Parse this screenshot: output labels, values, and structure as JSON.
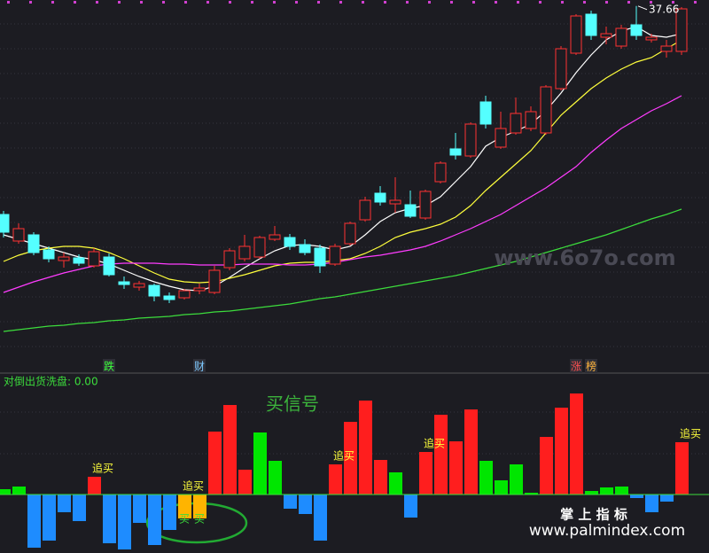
{
  "chart_data": [
    {
      "type": "candlestick",
      "up_color": "#ff3232",
      "down_color": "#54ffff",
      "ylim": [
        18,
        38
      ],
      "open": [
        25.9,
        24.4,
        24.75,
        23.9,
        23.3,
        23.45,
        23.0,
        23.5,
        22.1,
        21.8,
        21.9,
        21.3,
        21.2,
        21.6,
        21.5,
        22.9,
        23.4,
        23.5,
        24.5,
        24.6,
        24.2,
        24.0,
        23.1,
        24.25,
        25.6,
        27.1,
        26.5,
        26.45,
        25.7,
        27.75,
        29.6,
        29.2,
        32.25,
        29.7,
        30.5,
        30.75,
        30.5,
        33.0,
        35.0,
        37.2,
        35.9,
        35.4,
        36.6,
        35.75,
        35.1,
        35.1
      ],
      "close": [
        24.9,
        25.1,
        23.75,
        23.4,
        23.5,
        23.15,
        23.8,
        22.5,
        21.95,
        22.0,
        21.3,
        21.1,
        21.6,
        21.75,
        22.75,
        23.85,
        24.1,
        24.6,
        24.75,
        24.1,
        23.75,
        23.0,
        24.1,
        25.4,
        26.7,
        26.6,
        26.7,
        25.8,
        27.2,
        28.8,
        29.25,
        31.0,
        31.0,
        30.75,
        31.6,
        31.7,
        33.1,
        35.25,
        37.1,
        36.0,
        36.1,
        36.4,
        36.0,
        35.9,
        35.4,
        37.5
      ],
      "high": [
        26.1,
        25.4,
        24.9,
        24.1,
        23.75,
        23.65,
        24.0,
        23.7,
        22.4,
        22.15,
        22.0,
        21.5,
        21.7,
        22.0,
        23.0,
        24.0,
        24.75,
        24.7,
        25.25,
        24.8,
        24.5,
        24.2,
        24.25,
        25.5,
        26.9,
        27.5,
        28.0,
        27.25,
        27.3,
        28.9,
        30.5,
        31.1,
        32.6,
        31.7,
        32.5,
        32.0,
        33.2,
        35.4,
        37.2,
        37.4,
        36.5,
        36.6,
        37.66,
        36.1,
        35.75,
        37.6
      ],
      "low": [
        24.6,
        24.25,
        23.6,
        23.2,
        22.9,
        23.0,
        22.9,
        22.4,
        21.7,
        21.6,
        21.0,
        20.9,
        21.1,
        21.4,
        21.4,
        22.75,
        23.25,
        23.4,
        24.4,
        23.9,
        23.6,
        22.6,
        23.0,
        24.15,
        25.5,
        26.4,
        26.0,
        25.7,
        25.6,
        27.65,
        29.0,
        29.1,
        30.75,
        29.6,
        30.4,
        30.6,
        30.4,
        32.9,
        34.9,
        35.75,
        35.5,
        35.25,
        35.75,
        35.6,
        34.75,
        34.9
      ],
      "high_label_index": 42,
      "lines": [
        {
          "color": "#ffffff",
          "values": [
            24.75,
            24.5,
            24.25,
            24.0,
            23.75,
            23.5,
            23.35,
            23.1,
            22.75,
            22.4,
            22.1,
            21.85,
            21.65,
            21.6,
            21.85,
            22.35,
            22.9,
            23.4,
            23.85,
            24.15,
            24.2,
            24.1,
            23.9,
            24.1,
            24.75,
            25.5,
            26.0,
            26.25,
            26.4,
            26.9,
            27.75,
            28.6,
            29.75,
            30.25,
            30.6,
            31.0,
            31.75,
            32.75,
            33.9,
            34.9,
            35.75,
            36.25,
            36.5,
            36.0,
            35.9,
            36.1
          ]
        },
        {
          "color": "#ffff3c",
          "values": [
            23.25,
            23.6,
            23.85,
            24.0,
            24.1,
            24.1,
            24.0,
            23.75,
            23.4,
            23.0,
            22.6,
            22.25,
            22.1,
            22.05,
            22.1,
            22.3,
            22.5,
            22.75,
            23.0,
            23.15,
            23.2,
            23.2,
            23.3,
            23.4,
            23.7,
            24.1,
            24.6,
            24.9,
            25.1,
            25.35,
            25.75,
            26.4,
            27.25,
            28.0,
            28.75,
            29.5,
            30.5,
            31.5,
            32.25,
            33.0,
            33.6,
            34.1,
            34.5,
            34.75,
            35.25,
            35.75
          ]
        },
        {
          "color": "#ff3cff",
          "values": [
            21.5,
            21.8,
            22.1,
            22.35,
            22.6,
            22.8,
            23.0,
            23.1,
            23.15,
            23.15,
            23.15,
            23.1,
            23.1,
            23.05,
            23.05,
            23.05,
            23.1,
            23.1,
            23.1,
            23.05,
            23.05,
            23.1,
            23.2,
            23.35,
            23.5,
            23.6,
            23.75,
            23.9,
            24.1,
            24.4,
            24.75,
            25.1,
            25.5,
            25.9,
            26.4,
            26.9,
            27.4,
            28.0,
            28.6,
            29.4,
            30.1,
            30.75,
            31.25,
            31.75,
            32.15,
            32.6
          ]
        },
        {
          "color": "#3cdc3c",
          "values": [
            19.3,
            19.4,
            19.5,
            19.6,
            19.65,
            19.75,
            19.8,
            19.9,
            19.95,
            20.05,
            20.1,
            20.15,
            20.25,
            20.3,
            20.4,
            20.45,
            20.55,
            20.65,
            20.75,
            20.85,
            21.0,
            21.15,
            21.25,
            21.4,
            21.55,
            21.7,
            21.85,
            22.0,
            22.15,
            22.3,
            22.45,
            22.65,
            22.85,
            23.05,
            23.25,
            23.5,
            23.75,
            24.0,
            24.25,
            24.5,
            24.75,
            25.05,
            25.35,
            25.65,
            25.9,
            26.2
          ]
        }
      ],
      "markers": [
        {
          "index": 7,
          "text": "跌",
          "color": "#3cff3c"
        },
        {
          "index": 13,
          "text": "财",
          "color": "#7cc8ff"
        },
        {
          "index": 38,
          "text": "涨",
          "color": "#ff5050"
        },
        {
          "index": 39,
          "text": "榜",
          "color": "#ffb43c"
        }
      ]
    },
    {
      "type": "bar",
      "label": "对倒出货洗盘: 0.00",
      "title": "买信号",
      "ylim": [
        -66,
        138
      ],
      "values": [
        6,
        9,
        -60,
        -52,
        -20,
        -30,
        20,
        -55,
        -62,
        -32,
        -57,
        -40,
        -27,
        -27,
        71,
        101,
        28,
        70,
        38,
        -16,
        -22,
        -52,
        34,
        82,
        106,
        39,
        25,
        -26,
        48,
        90,
        60,
        96,
        38,
        16,
        34,
        2,
        65,
        98,
        114,
        4,
        8,
        9,
        -4,
        -20,
        -8,
        59
      ],
      "colors": [
        "#00e600",
        "#00e600",
        "#1e8cff",
        "#1e8cff",
        "#1e8cff",
        "#1e8cff",
        "#ff1e1e",
        "#1e8cff",
        "#1e8cff",
        "#1e8cff",
        "#1e8cff",
        "#1e8cff",
        "#ffb400",
        "#ffb400",
        "#ff1e1e",
        "#ff1e1e",
        "#ff1e1e",
        "#00e600",
        "#00e600",
        "#1e8cff",
        "#1e8cff",
        "#1e8cff",
        "#ff1e1e",
        "#ff1e1e",
        "#ff1e1e",
        "#ff1e1e",
        "#00e600",
        "#1e8cff",
        "#ff1e1e",
        "#ff1e1e",
        "#ff1e1e",
        "#ff1e1e",
        "#00e600",
        "#00e600",
        "#00e600",
        "#00e600",
        "#ff1e1e",
        "#ff1e1e",
        "#ff1e1e",
        "#00e600",
        "#00e600",
        "#00e600",
        "#1e8cff",
        "#1e8cff",
        "#1e8cff",
        "#ff1e1e"
      ],
      "annotations": [
        {
          "index": 6,
          "text": "追买"
        },
        {
          "index": 12,
          "text": "追买"
        },
        {
          "index": 22,
          "text": "追买"
        },
        {
          "index": 28,
          "text": "追买"
        },
        {
          "index": 45,
          "text": "追买"
        }
      ],
      "buy_marks": [
        {
          "index": 12,
          "text": "买"
        },
        {
          "index": 13,
          "text": "买"
        }
      ]
    }
  ],
  "watermarks": [
    "www.6o7o.com",
    "掌 上 指 标",
    "www.palmindex.com"
  ]
}
